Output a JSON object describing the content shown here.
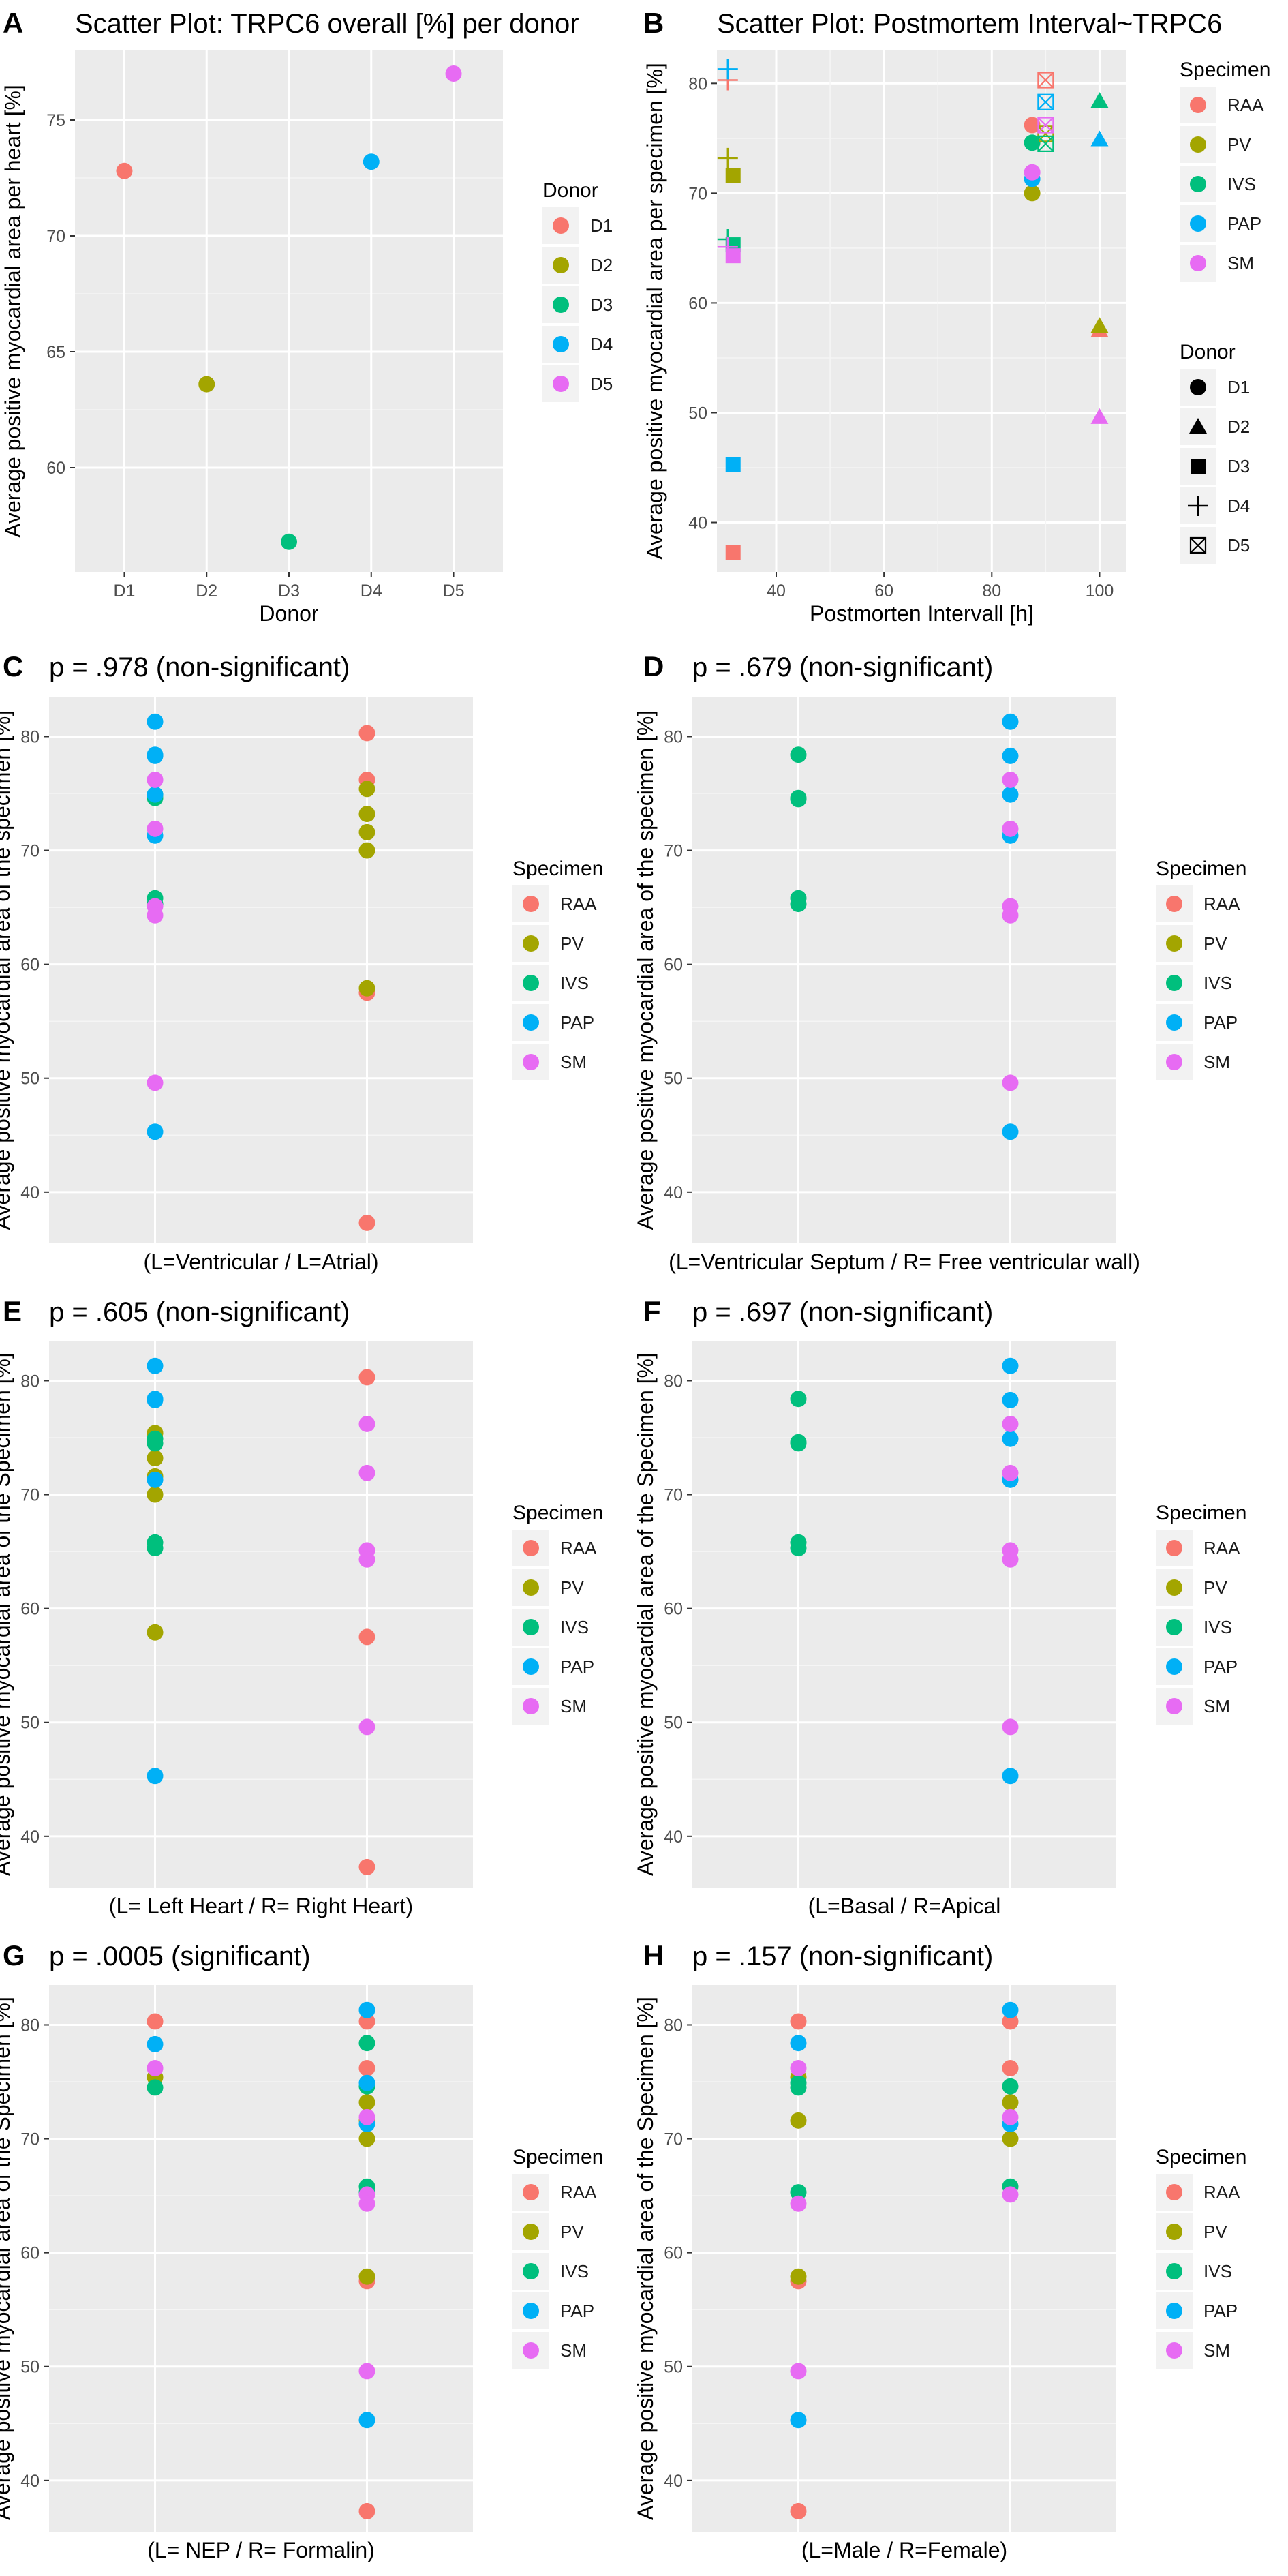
{
  "colors": {
    "RAA": "#F8766D",
    "PV": "#A3A500",
    "IVS": "#00BF7D",
    "PAP": "#00B0F6",
    "SM": "#E76BF3",
    "D1": "#F8766D",
    "D2": "#A3A500",
    "D3": "#00BF7D",
    "D4": "#00B0F6",
    "D5": "#E76BF3",
    "panel_bg": "#EBEBEB",
    "grid": "#FFFFFF"
  },
  "chart_data": [
    {
      "panel": "A",
      "type": "scatter",
      "title": "Scatter Plot: TRPC6 overall [%] per donor",
      "xlabel": "Donor",
      "ylabel": "Average positive myocardial area per heart [%]",
      "categories": [
        "D1",
        "D2",
        "D3",
        "D4",
        "D5"
      ],
      "ylim": [
        55.5,
        78
      ],
      "yticks": [
        60,
        65,
        70,
        75
      ],
      "legend": {
        "title": "Donor",
        "entries": [
          "D1",
          "D2",
          "D3",
          "D4",
          "D5"
        ]
      },
      "points": [
        {
          "x": "D1",
          "y": 72.8,
          "color": "D1"
        },
        {
          "x": "D2",
          "y": 63.6,
          "color": "D2"
        },
        {
          "x": "D3",
          "y": 56.8,
          "color": "D3"
        },
        {
          "x": "D4",
          "y": 73.2,
          "color": "D4"
        },
        {
          "x": "D5",
          "y": 77.0,
          "color": "D5"
        }
      ]
    },
    {
      "panel": "B",
      "type": "scatter",
      "title": "Scatter Plot: Postmortem Interval~TRPC6",
      "xlabel": "Postmorten Intervall [h]",
      "ylabel": "Average positive myocardial area per specimen [%]",
      "xlim": [
        29,
        105
      ],
      "xticks": [
        40,
        60,
        80,
        100
      ],
      "ylim": [
        35.5,
        83
      ],
      "yticks": [
        40,
        50,
        60,
        70,
        80
      ],
      "legend_specimen": {
        "title": "Specimen",
        "entries": [
          "RAA",
          "PV",
          "IVS",
          "PAP",
          "SM"
        ]
      },
      "legend_donor": {
        "title": "Donor",
        "entries": [
          "D1",
          "D2",
          "D3",
          "D4",
          "D5"
        ]
      },
      "donor_shapes": {
        "D1": "circle",
        "D2": "triangle",
        "D3": "square",
        "D4": "plus",
        "D5": "boxx"
      },
      "points": [
        {
          "x": 87.5,
          "y": 76.2,
          "specimen": "RAA",
          "donor": "D1"
        },
        {
          "x": 87.5,
          "y": 70.0,
          "specimen": "PV",
          "donor": "D1"
        },
        {
          "x": 87.5,
          "y": 74.6,
          "specimen": "IVS",
          "donor": "D1"
        },
        {
          "x": 87.5,
          "y": 71.3,
          "specimen": "PAP",
          "donor": "D1"
        },
        {
          "x": 87.5,
          "y": 71.9,
          "specimen": "SM",
          "donor": "D1"
        },
        {
          "x": 100,
          "y": 57.5,
          "specimen": "RAA",
          "donor": "D2"
        },
        {
          "x": 100,
          "y": 57.9,
          "specimen": "PV",
          "donor": "D2"
        },
        {
          "x": 100,
          "y": 78.4,
          "specimen": "IVS",
          "donor": "D2"
        },
        {
          "x": 100,
          "y": 74.9,
          "specimen": "PAP",
          "donor": "D2"
        },
        {
          "x": 100,
          "y": 49.6,
          "specimen": "SM",
          "donor": "D2"
        },
        {
          "x": 32,
          "y": 37.3,
          "specimen": "RAA",
          "donor": "D3"
        },
        {
          "x": 32,
          "y": 71.6,
          "specimen": "PV",
          "donor": "D3"
        },
        {
          "x": 32,
          "y": 65.3,
          "specimen": "IVS",
          "donor": "D3"
        },
        {
          "x": 32,
          "y": 45.3,
          "specimen": "PAP",
          "donor": "D3"
        },
        {
          "x": 32,
          "y": 64.3,
          "specimen": "SM",
          "donor": "D3"
        },
        {
          "x": 31,
          "y": 80.3,
          "specimen": "RAA",
          "donor": "D4"
        },
        {
          "x": 31,
          "y": 73.2,
          "specimen": "PV",
          "donor": "D4"
        },
        {
          "x": 31,
          "y": 65.8,
          "specimen": "IVS",
          "donor": "D4"
        },
        {
          "x": 31,
          "y": 81.3,
          "specimen": "PAP",
          "donor": "D4"
        },
        {
          "x": 31,
          "y": 65.1,
          "specimen": "SM",
          "donor": "D4"
        },
        {
          "x": 90,
          "y": 80.3,
          "specimen": "RAA",
          "donor": "D5"
        },
        {
          "x": 90,
          "y": 75.4,
          "specimen": "PV",
          "donor": "D5"
        },
        {
          "x": 90,
          "y": 74.5,
          "specimen": "IVS",
          "donor": "D5"
        },
        {
          "x": 90,
          "y": 78.3,
          "specimen": "PAP",
          "donor": "D5"
        },
        {
          "x": 90,
          "y": 76.2,
          "specimen": "SM",
          "donor": "D5"
        }
      ]
    },
    {
      "panel": "C",
      "type": "scatter",
      "title": "p = .978 (non-significant)",
      "xlabel": "(L=Ventricular / L=Atrial)",
      "ylabel": "Average positive myocardial area of the specimen [%]",
      "ylim": [
        35.5,
        83.5
      ],
      "yticks": [
        40,
        50,
        60,
        70,
        80
      ],
      "legend": {
        "title": "Specimen",
        "entries": [
          "RAA",
          "PV",
          "IVS",
          "PAP",
          "SM"
        ]
      },
      "groups": [
        {
          "points": [
            [
              "IVS",
              74.6
            ],
            [
              "IVS",
              74.9
            ],
            [
              "IVS",
              65.3
            ],
            [
              "IVS",
              65.8
            ],
            [
              "PAP",
              81.3
            ],
            [
              "PAP",
              78.4
            ],
            [
              "PAP",
              78.3
            ],
            [
              "PAP",
              74.9
            ],
            [
              "PAP",
              71.3
            ],
            [
              "PAP",
              45.3
            ],
            [
              "SM",
              76.2
            ],
            [
              "SM",
              71.9
            ],
            [
              "SM",
              65.1
            ],
            [
              "SM",
              64.3
            ],
            [
              "SM",
              49.6
            ]
          ]
        },
        {
          "points": [
            [
              "RAA",
              80.3
            ],
            [
              "RAA",
              76.2
            ],
            [
              "RAA",
              57.5
            ],
            [
              "RAA",
              37.3
            ],
            [
              "PV",
              75.4
            ],
            [
              "PV",
              73.2
            ],
            [
              "PV",
              71.6
            ],
            [
              "PV",
              70.0
            ],
            [
              "PV",
              57.9
            ]
          ]
        }
      ]
    },
    {
      "panel": "D",
      "type": "scatter",
      "title": "p = .679 (non-significant)",
      "xlabel": "(L=Ventricular Septum / R= Free ventricular wall)",
      "ylabel": "Average positive myocardial area of the specimen [%]",
      "ylim": [
        35.5,
        83.5
      ],
      "yticks": [
        40,
        50,
        60,
        70,
        80
      ],
      "legend": {
        "title": "Specimen",
        "entries": [
          "RAA",
          "PV",
          "IVS",
          "PAP",
          "SM"
        ]
      },
      "groups": [
        {
          "points": [
            [
              "IVS",
              78.4
            ],
            [
              "IVS",
              74.6
            ],
            [
              "IVS",
              74.5
            ],
            [
              "IVS",
              65.8
            ],
            [
              "IVS",
              65.3
            ]
          ]
        },
        {
          "points": [
            [
              "PAP",
              81.3
            ],
            [
              "PAP",
              78.3
            ],
            [
              "PAP",
              74.9
            ],
            [
              "PAP",
              71.3
            ],
            [
              "PAP",
              45.3
            ],
            [
              "SM",
              76.2
            ],
            [
              "SM",
              71.9
            ],
            [
              "SM",
              65.1
            ],
            [
              "SM",
              64.3
            ],
            [
              "SM",
              49.6
            ]
          ]
        }
      ]
    },
    {
      "panel": "E",
      "type": "scatter",
      "title": "p = .605 (non-significant)",
      "xlabel": "(L= Left Heart / R= Right Heart)",
      "ylabel": "Average positive myocardial area of the Specimen [%]",
      "ylim": [
        35.5,
        83.5
      ],
      "yticks": [
        40,
        50,
        60,
        70,
        80
      ],
      "legend": {
        "title": "Specimen",
        "entries": [
          "RAA",
          "PV",
          "IVS",
          "PAP",
          "SM"
        ]
      },
      "groups": [
        {
          "points": [
            [
              "PV",
              75.4
            ],
            [
              "PV",
              73.2
            ],
            [
              "PV",
              71.6
            ],
            [
              "PV",
              70.0
            ],
            [
              "PV",
              57.9
            ],
            [
              "IVS",
              74.9
            ],
            [
              "IVS",
              74.5
            ],
            [
              "IVS",
              65.8
            ],
            [
              "IVS",
              65.3
            ],
            [
              "PAP",
              81.3
            ],
            [
              "PAP",
              78.4
            ],
            [
              "PAP",
              78.3
            ],
            [
              "PAP",
              71.3
            ],
            [
              "PAP",
              45.3
            ]
          ]
        },
        {
          "points": [
            [
              "RAA",
              80.3
            ],
            [
              "RAA",
              57.5
            ],
            [
              "RAA",
              37.3
            ],
            [
              "SM",
              76.2
            ],
            [
              "SM",
              71.9
            ],
            [
              "SM",
              65.1
            ],
            [
              "SM",
              64.3
            ],
            [
              "SM",
              49.6
            ]
          ]
        }
      ]
    },
    {
      "panel": "F",
      "type": "scatter",
      "title": "p = .697 (non-significant)",
      "xlabel": "(L=Basal / R=Apical",
      "ylabel": "Average positive myocardial area of the Specimen [%]",
      "ylim": [
        35.5,
        83.5
      ],
      "yticks": [
        40,
        50,
        60,
        70,
        80
      ],
      "legend": {
        "title": "Specimen",
        "entries": [
          "RAA",
          "PV",
          "IVS",
          "PAP",
          "SM"
        ]
      },
      "groups": [
        {
          "points": [
            [
              "IVS",
              78.4
            ],
            [
              "IVS",
              74.6
            ],
            [
              "IVS",
              74.5
            ],
            [
              "IVS",
              65.8
            ],
            [
              "IVS",
              65.3
            ]
          ]
        },
        {
          "points": [
            [
              "PAP",
              81.3
            ],
            [
              "PAP",
              78.3
            ],
            [
              "PAP",
              74.9
            ],
            [
              "PAP",
              71.3
            ],
            [
              "PAP",
              45.3
            ],
            [
              "SM",
              76.2
            ],
            [
              "SM",
              71.9
            ],
            [
              "SM",
              65.1
            ],
            [
              "SM",
              64.3
            ],
            [
              "SM",
              49.6
            ]
          ]
        }
      ]
    },
    {
      "panel": "G",
      "type": "scatter",
      "title": "p = .0005 (significant)",
      "xlabel": "(L= NEP / R= Formalin)",
      "ylabel": "Average positive myocardial area of the Specimen [%]",
      "ylim": [
        35.5,
        83.5
      ],
      "yticks": [
        40,
        50,
        60,
        70,
        80
      ],
      "legend": {
        "title": "Specimen",
        "entries": [
          "RAA",
          "PV",
          "IVS",
          "PAP",
          "SM"
        ]
      },
      "groups": [
        {
          "points": [
            [
              "RAA",
              80.3
            ],
            [
              "PV",
              75.4
            ],
            [
              "IVS",
              74.5
            ],
            [
              "PAP",
              78.3
            ],
            [
              "SM",
              76.2
            ]
          ]
        },
        {
          "points": [
            [
              "RAA",
              80.3
            ],
            [
              "RAA",
              76.2
            ],
            [
              "RAA",
              57.5
            ],
            [
              "RAA",
              37.3
            ],
            [
              "PV",
              73.2
            ],
            [
              "PV",
              71.6
            ],
            [
              "PV",
              70.0
            ],
            [
              "PV",
              57.9
            ],
            [
              "IVS",
              78.4
            ],
            [
              "IVS",
              74.6
            ],
            [
              "IVS",
              65.8
            ],
            [
              "IVS",
              65.3
            ],
            [
              "PAP",
              81.3
            ],
            [
              "PAP",
              74.9
            ],
            [
              "PAP",
              71.3
            ],
            [
              "PAP",
              45.3
            ],
            [
              "SM",
              71.9
            ],
            [
              "SM",
              65.1
            ],
            [
              "SM",
              64.3
            ],
            [
              "SM",
              49.6
            ]
          ]
        }
      ]
    },
    {
      "panel": "H",
      "type": "scatter",
      "title": "p = .157 (non-significant)",
      "xlabel": "(L=Male / R=Female)",
      "ylabel": "Average positive myocardial area of the Specimen [%]",
      "ylim": [
        35.5,
        83.5
      ],
      "yticks": [
        40,
        50,
        60,
        70,
        80
      ],
      "legend": {
        "title": "Specimen",
        "entries": [
          "RAA",
          "PV",
          "IVS",
          "PAP",
          "SM"
        ]
      },
      "groups": [
        {
          "points": [
            [
              "RAA",
              80.3
            ],
            [
              "RAA",
              57.5
            ],
            [
              "RAA",
              37.3
            ],
            [
              "PV",
              75.4
            ],
            [
              "PV",
              71.6
            ],
            [
              "PV",
              57.9
            ],
            [
              "IVS",
              74.9
            ],
            [
              "IVS",
              74.5
            ],
            [
              "IVS",
              65.3
            ],
            [
              "PAP",
              78.4
            ],
            [
              "PAP",
              45.3
            ],
            [
              "SM",
              76.2
            ],
            [
              "SM",
              64.3
            ],
            [
              "SM",
              49.6
            ]
          ]
        },
        {
          "points": [
            [
              "RAA",
              80.3
            ],
            [
              "RAA",
              76.2
            ],
            [
              "PV",
              73.2
            ],
            [
              "PV",
              70.0
            ],
            [
              "IVS",
              74.6
            ],
            [
              "IVS",
              65.8
            ],
            [
              "PAP",
              81.3
            ],
            [
              "PAP",
              71.3
            ],
            [
              "SM",
              71.9
            ],
            [
              "SM",
              65.1
            ]
          ]
        }
      ]
    }
  ]
}
